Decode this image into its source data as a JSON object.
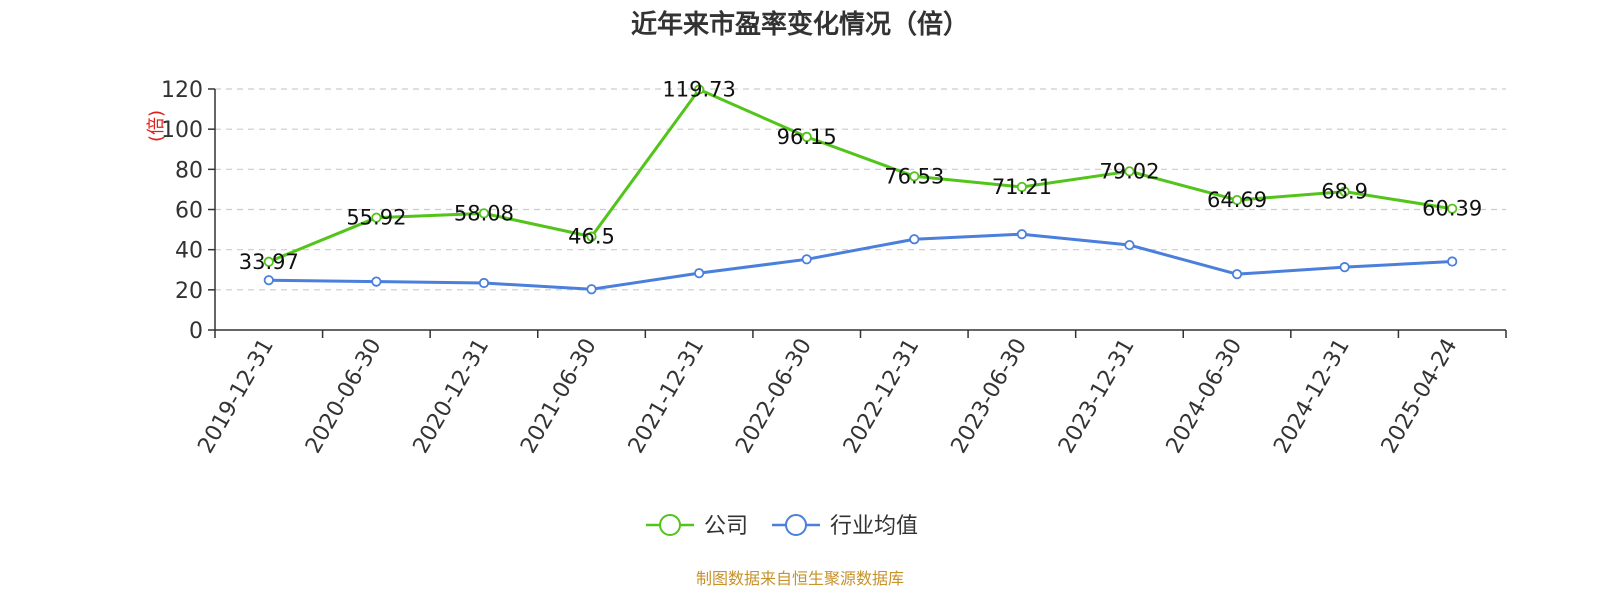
{
  "chart_data": {
    "type": "line",
    "title": "近年来市盈率变化情况（倍）",
    "ylabel": "(倍)",
    "xlabel": "",
    "ylim": [
      0,
      120
    ],
    "yticks": [
      0,
      20,
      40,
      60,
      80,
      100,
      120
    ],
    "grid": true,
    "legend_position": "bottom",
    "categories": [
      "2019-12-31",
      "2020-06-30",
      "2020-12-31",
      "2021-06-30",
      "2021-12-31",
      "2022-06-30",
      "2022-12-31",
      "2023-06-30",
      "2023-12-31",
      "2024-06-30",
      "2024-12-31",
      "2025-04-24"
    ],
    "series": [
      {
        "name": "公司",
        "color": "#52c41a",
        "values": [
          33.97,
          55.92,
          58.08,
          46.5,
          119.73,
          96.15,
          76.53,
          71.21,
          79.02,
          64.69,
          68.9,
          60.39
        ],
        "data_labels": [
          "33.97",
          "55.92",
          "58.08",
          "46.5",
          "119.73",
          "96.15",
          "76.53",
          "71.21",
          "79.02",
          "64.69",
          "68.9",
          "60.39"
        ]
      },
      {
        "name": "行业均值",
        "color": "#4a7fdc",
        "values": [
          24.8,
          24.1,
          23.4,
          20.3,
          28.3,
          35.2,
          45.2,
          47.7,
          42.3,
          27.8,
          31.3,
          34.1
        ]
      }
    ]
  },
  "colors": {
    "ylabel": "#e0201b",
    "source": "#c8922a",
    "axis": "#333333",
    "grid": "#cccccc"
  },
  "source_text": "制图数据来自恒生聚源数据库"
}
